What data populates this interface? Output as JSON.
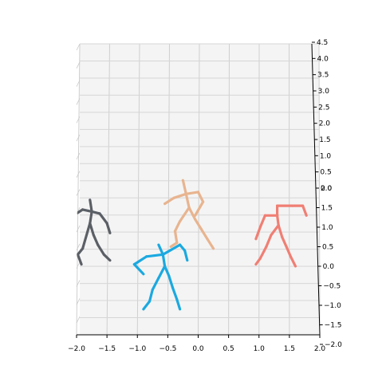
{
  "chart_data": {
    "type": "scatter",
    "title": "",
    "xlabel": "",
    "ylabel": "",
    "zlabel": "",
    "xlim": [
      -2.0,
      2.0
    ],
    "ylim_right": [
      -2.0,
      2.0
    ],
    "zlim": [
      0.0,
      4.5
    ],
    "grid": true,
    "x_ticks": [
      "−2.0",
      "−1.5",
      "−1.0",
      "−0.5",
      "0.0",
      "0.5",
      "1.0",
      "1.5",
      "2.0"
    ],
    "y_ticks": [
      "2.0",
      "1.5",
      "1.0",
      "0.5",
      "0.0",
      "−0.5",
      "−1.0",
      "−1.5",
      "−2.0"
    ],
    "z_ticks": [
      "0.0",
      "0.5",
      "1.0",
      "1.5",
      "2.0",
      "2.5",
      "3.0",
      "3.5",
      "4.0",
      "4.5"
    ],
    "series": [
      {
        "color": "#5b5f66",
        "points": [
          [
            -1.78,
            1.7
          ],
          [
            -1.75,
            1.4
          ],
          [
            -1.78,
            1.1
          ],
          [
            -1.72,
            0.8
          ],
          [
            -1.65,
            0.55
          ],
          [
            -1.55,
            0.3
          ],
          [
            -1.45,
            0.15
          ],
          [
            -1.9,
            0.45
          ],
          [
            -1.98,
            0.3
          ],
          [
            -1.92,
            0.05
          ],
          [
            -1.62,
            1.35
          ],
          [
            -1.5,
            1.1
          ],
          [
            -1.45,
            0.85
          ],
          [
            -1.9,
            1.45
          ],
          [
            -2.05,
            1.3
          ],
          [
            -2.12,
            1.1
          ]
        ],
        "bones": [
          [
            0,
            1
          ],
          [
            1,
            2
          ],
          [
            2,
            3
          ],
          [
            3,
            4
          ],
          [
            4,
            5
          ],
          [
            5,
            6
          ],
          [
            2,
            7
          ],
          [
            7,
            8
          ],
          [
            8,
            9
          ],
          [
            1,
            10
          ],
          [
            10,
            11
          ],
          [
            11,
            12
          ],
          [
            1,
            13
          ],
          [
            13,
            14
          ],
          [
            14,
            15
          ]
        ]
      },
      {
        "color": "#e8b48f",
        "points": [
          [
            -0.25,
            2.2
          ],
          [
            -0.2,
            1.85
          ],
          [
            -0.15,
            1.5
          ],
          [
            -0.05,
            1.2
          ],
          [
            0.05,
            0.95
          ],
          [
            0.15,
            0.7
          ],
          [
            0.25,
            0.45
          ],
          [
            -0.3,
            1.15
          ],
          [
            -0.38,
            0.9
          ],
          [
            -0.35,
            0.6
          ],
          [
            -0.45,
            0.5
          ],
          [
            0.0,
            1.9
          ],
          [
            0.08,
            1.65
          ],
          [
            -0.05,
            1.3
          ],
          [
            -0.4,
            1.75
          ],
          [
            -0.55,
            1.6
          ]
        ],
        "bones": [
          [
            0,
            1
          ],
          [
            1,
            2
          ],
          [
            2,
            3
          ],
          [
            3,
            4
          ],
          [
            4,
            5
          ],
          [
            5,
            6
          ],
          [
            2,
            7
          ],
          [
            7,
            8
          ],
          [
            8,
            9
          ],
          [
            9,
            10
          ],
          [
            1,
            11
          ],
          [
            11,
            12
          ],
          [
            12,
            13
          ],
          [
            1,
            14
          ],
          [
            14,
            15
          ]
        ]
      },
      {
        "color": "#1ba9e0",
        "points": [
          [
            -0.65,
            0.55
          ],
          [
            -0.58,
            0.3
          ],
          [
            -0.55,
            0.0
          ],
          [
            -0.48,
            -0.25
          ],
          [
            -0.42,
            -0.55
          ],
          [
            -0.35,
            -0.85
          ],
          [
            -0.3,
            -1.1
          ],
          [
            -0.65,
            -0.3
          ],
          [
            -0.75,
            -0.6
          ],
          [
            -0.8,
            -0.9
          ],
          [
            -0.9,
            -1.1
          ],
          [
            -0.3,
            0.55
          ],
          [
            -0.22,
            0.4
          ],
          [
            -0.18,
            0.15
          ],
          [
            -0.85,
            0.25
          ],
          [
            -1.05,
            0.05
          ],
          [
            -0.9,
            -0.2
          ]
        ],
        "bones": [
          [
            0,
            1
          ],
          [
            1,
            2
          ],
          [
            2,
            3
          ],
          [
            3,
            4
          ],
          [
            4,
            5
          ],
          [
            5,
            6
          ],
          [
            2,
            7
          ],
          [
            7,
            8
          ],
          [
            8,
            9
          ],
          [
            9,
            10
          ],
          [
            1,
            11
          ],
          [
            11,
            12
          ],
          [
            12,
            13
          ],
          [
            1,
            14
          ],
          [
            14,
            15
          ],
          [
            15,
            16
          ]
        ]
      },
      {
        "color": "#f07f74",
        "points": [
          [
            1.3,
            1.55
          ],
          [
            1.3,
            1.3
          ],
          [
            1.32,
            1.05
          ],
          [
            1.38,
            0.75
          ],
          [
            1.45,
            0.5
          ],
          [
            1.52,
            0.25
          ],
          [
            1.6,
            0.0
          ],
          [
            1.2,
            0.8
          ],
          [
            1.12,
            0.5
          ],
          [
            1.02,
            0.2
          ],
          [
            0.95,
            0.05
          ],
          [
            1.55,
            1.55
          ],
          [
            1.72,
            1.55
          ],
          [
            1.78,
            1.3
          ],
          [
            1.1,
            1.3
          ],
          [
            1.02,
            1.0
          ],
          [
            0.95,
            0.7
          ]
        ],
        "bones": [
          [
            0,
            1
          ],
          [
            1,
            2
          ],
          [
            2,
            3
          ],
          [
            3,
            4
          ],
          [
            4,
            5
          ],
          [
            5,
            6
          ],
          [
            2,
            7
          ],
          [
            7,
            8
          ],
          [
            8,
            9
          ],
          [
            9,
            10
          ],
          [
            0,
            11
          ],
          [
            11,
            12
          ],
          [
            12,
            13
          ],
          [
            1,
            14
          ],
          [
            14,
            15
          ],
          [
            15,
            16
          ]
        ]
      }
    ]
  }
}
